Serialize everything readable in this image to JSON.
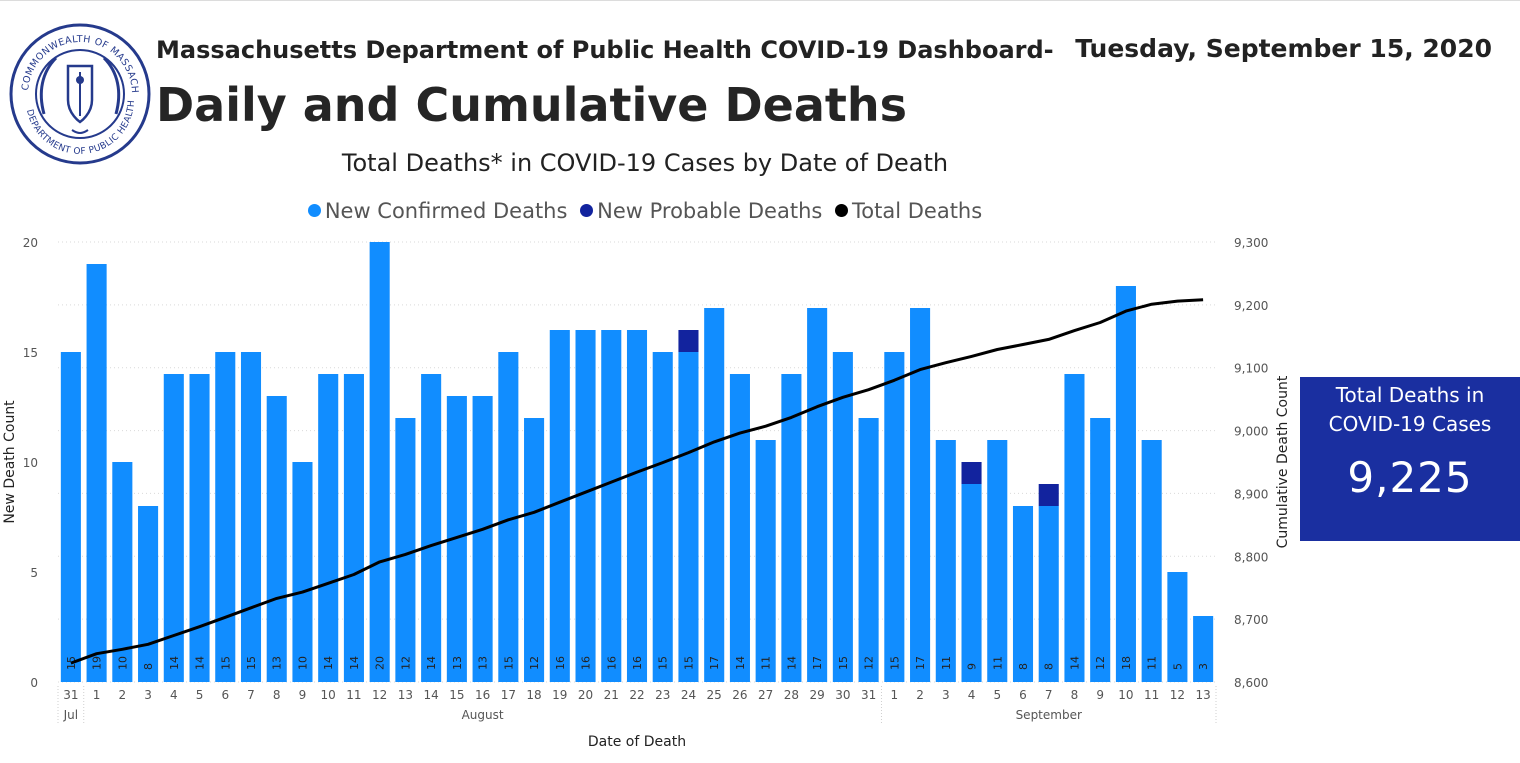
{
  "header": {
    "title": "Massachusetts Department of Public Health COVID-19 Dashboard-",
    "date": "Tuesday, September 15, 2020",
    "page_title": "Daily and Cumulative Deaths",
    "seal_text": "COMMONWEALTH OF MASSACHUSETTS · DEPARTMENT OF PUBLIC HEALTH"
  },
  "kpi": {
    "label": "Total Deaths in COVID-19 Cases",
    "value": "9,225"
  },
  "colors": {
    "confirmed": "#118dff",
    "probable": "#12239e",
    "total_line": "#000000",
    "kpi_bg": "#1a2fa0",
    "grid": "#d9d9d9",
    "axis_text": "#555555"
  },
  "chart_data": {
    "type": "bar",
    "title": "Total Deaths* in COVID-19 Cases by Date of Death",
    "xlabel": "Date of Death",
    "ylabel": "New Death Count",
    "y2label": "Cumulative Death Count",
    "ylim": [
      0,
      20
    ],
    "y_ticks": [
      "0",
      "5",
      "10",
      "15",
      "20"
    ],
    "y2lim": [
      8600,
      9300
    ],
    "y2_ticks": [
      "8,600",
      "8,700",
      "8,800",
      "8,900",
      "9,000",
      "9,100",
      "9,200",
      "9,300"
    ],
    "grid": true,
    "legend_position": "top-center",
    "legend": [
      "New Confirmed Deaths",
      "New Probable Deaths",
      "Total Deaths"
    ],
    "categories": [
      "31",
      "1",
      "2",
      "3",
      "4",
      "5",
      "6",
      "7",
      "8",
      "9",
      "10",
      "11",
      "12",
      "13",
      "14",
      "15",
      "16",
      "17",
      "18",
      "19",
      "20",
      "21",
      "22",
      "23",
      "24",
      "25",
      "26",
      "27",
      "28",
      "29",
      "30",
      "31",
      "1",
      "2",
      "3",
      "4",
      "5",
      "6",
      "7",
      "8",
      "9",
      "10",
      "11",
      "12",
      "13"
    ],
    "month_groups": [
      {
        "label": "Jul",
        "start": 0,
        "end": 0
      },
      {
        "label": "August",
        "start": 1,
        "end": 31
      },
      {
        "label": "September",
        "start": 32,
        "end": 44
      }
    ],
    "series": [
      {
        "name": "New Confirmed Deaths",
        "type": "bar",
        "values": [
          15,
          19,
          10,
          8,
          14,
          14,
          15,
          15,
          13,
          10,
          14,
          14,
          20,
          12,
          14,
          13,
          13,
          15,
          12,
          16,
          16,
          16,
          16,
          15,
          15,
          17,
          14,
          11,
          14,
          17,
          15,
          12,
          15,
          17,
          11,
          9,
          11,
          8,
          8,
          14,
          12,
          18,
          11,
          5,
          3
        ]
      },
      {
        "name": "New Probable Deaths",
        "type": "bar",
        "stacked": true,
        "values": [
          0,
          0,
          0,
          0,
          0,
          0,
          0,
          0,
          0,
          0,
          0,
          0,
          0,
          0,
          0,
          0,
          0,
          0,
          0,
          0,
          0,
          0,
          0,
          0,
          1,
          0,
          0,
          0,
          0,
          0,
          0,
          0,
          0,
          0,
          0,
          1,
          0,
          0,
          1,
          0,
          0,
          0,
          0,
          0,
          0
        ]
      },
      {
        "name": "Total Deaths",
        "type": "line",
        "axis": "right",
        "values": [
          8630,
          8645,
          8652,
          8660,
          8674,
          8688,
          8703,
          8718,
          8733,
          8743,
          8757,
          8771,
          8791,
          8803,
          8817,
          8830,
          8843,
          8858,
          8870,
          8886,
          8902,
          8918,
          8934,
          8949,
          8965,
          8982,
          8996,
          9007,
          9021,
          9038,
          9053,
          9065,
          9080,
          9097,
          9108,
          9118,
          9129,
          9137,
          9145,
          9159,
          9172,
          9190,
          9201,
          9206,
          9208
        ]
      }
    ]
  }
}
